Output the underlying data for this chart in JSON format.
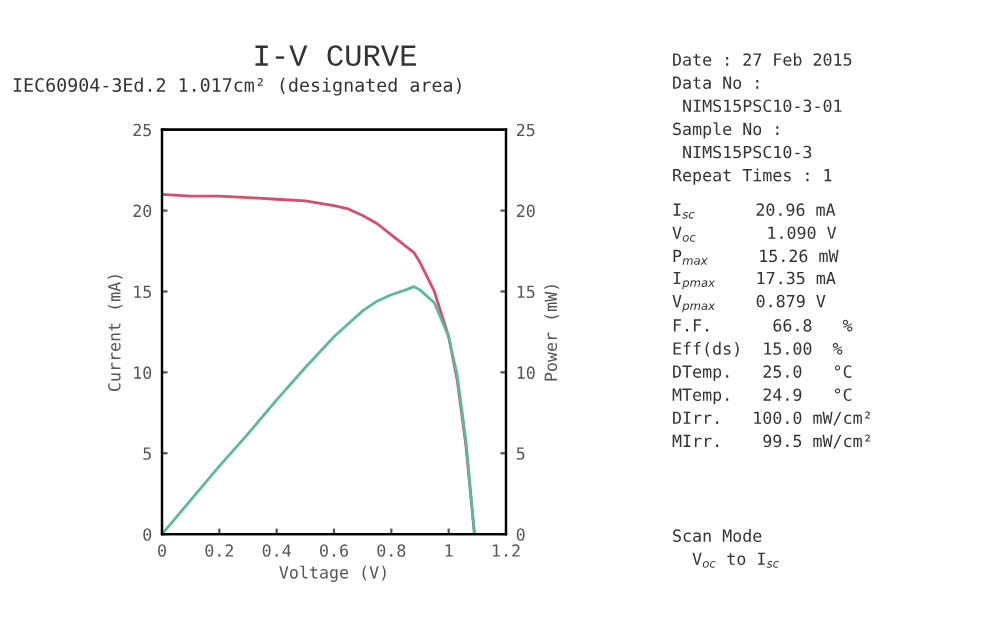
{
  "chart_data": {
    "type": "line",
    "title": "I-V CURVE",
    "subtitle": "IEC60904-3Ed.2 1.017cm² (designated area)",
    "xlabel": "Voltage (V)",
    "ylabel": "Current (mA)",
    "y2label": "Power (mW)",
    "x": [
      0,
      0.1,
      0.2,
      0.3,
      0.4,
      0.5,
      0.6,
      0.65,
      0.7,
      0.75,
      0.8,
      0.85,
      0.879,
      0.9,
      0.95,
      1.0,
      1.03,
      1.06,
      1.09
    ],
    "series": [
      {
        "color": "#d2506e",
        "values": [
          21.0,
          20.9,
          20.9,
          20.8,
          20.7,
          20.6,
          20.3,
          20.1,
          19.7,
          19.2,
          18.5,
          17.8,
          17.4,
          16.8,
          15.0,
          12.2,
          9.5,
          5.5,
          0
        ]
      },
      {
        "color": "#5fb89a",
        "axis": "y2",
        "values": [
          0,
          2.1,
          4.2,
          6.2,
          8.3,
          10.3,
          12.2,
          13.0,
          13.8,
          14.4,
          14.8,
          15.1,
          15.3,
          15.1,
          14.3,
          12.2,
          9.8,
          5.8,
          0
        ]
      }
    ],
    "xlim": [
      0,
      1.2
    ],
    "xticks": [
      0,
      0.2,
      0.4,
      0.6,
      0.8,
      1,
      1.2
    ],
    "ylim": [
      0,
      25
    ],
    "yticks": [
      0,
      5,
      10,
      15,
      20,
      25
    ],
    "y2lim": [
      0,
      25
    ],
    "y2ticks": [
      0,
      5,
      10,
      15,
      20,
      25
    ],
    "grid": false,
    "legend": false,
    "marker": "none",
    "line_style": "solid",
    "annotations": [
      "Date : 27 Feb 2015",
      "Data No :",
      " NIMS15PSC10-3-01",
      "Sample No :",
      " NIMS15PSC10-3",
      "Repeat Times : 1",
      "I$_{sc}$      20.96 mA",
      "V$_{oc}$       1.090 V",
      "P$_{max}$     15.26 mW",
      "I$_{pmax}$    17.35 mA",
      "V$_{pmax}$    0.879 V",
      "F.F.      66.8   %",
      "Eff(ds)  15.00  %",
      "DTemp.   25.0   °C",
      "MTemp.   24.9   °C",
      "DIrr.   100.0 mW/cm²",
      "MIrr.    99.5 mW/cm²",
      "Scan Mode",
      "  V$_{oc}$ to I$_{sc}$"
    ]
  }
}
